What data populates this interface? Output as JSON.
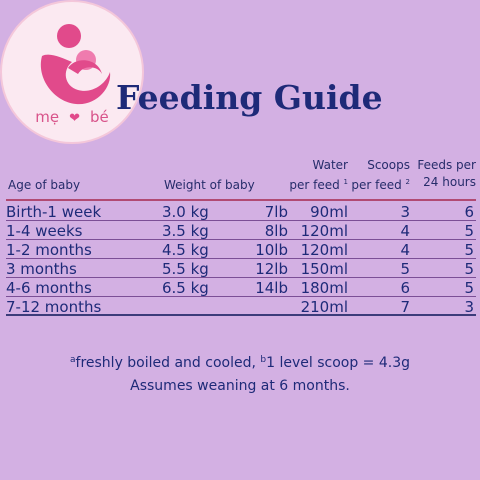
{
  "logo": {
    "icon": "mother-and-baby-icon",
    "brand_left": "mẹ",
    "brand_heart": "❤",
    "brand_right": "bé",
    "colors": {
      "accent": "#e14a8b",
      "ring": "#f4c7da"
    }
  },
  "title": "Feeding Guide",
  "headers": {
    "age": "Age of baby",
    "weight": "Weight of baby",
    "water_line1": "Water",
    "water_line2": "per feed",
    "water_mark": "1",
    "scoops_line1": "Scoops",
    "scoops_line2": "per feed",
    "scoops_mark": "2",
    "feeds_line1": "Feeds per",
    "feeds_line2": "24 hours"
  },
  "rows": [
    {
      "age": "Birth-1 week",
      "kg": "3.0 kg",
      "lb": "7lb",
      "water": "90ml",
      "scoops": "3",
      "feeds": "6"
    },
    {
      "age": "1-4 weeks",
      "kg": "3.5 kg",
      "lb": "8lb",
      "water": "120ml",
      "scoops": "4",
      "feeds": "5"
    },
    {
      "age": "1-2 months",
      "kg": "4.5 kg",
      "lb": "10lb",
      "water": "120ml",
      "scoops": "4",
      "feeds": "5"
    },
    {
      "age": "3 months",
      "kg": "5.5 kg",
      "lb": "12lb",
      "water": "150ml",
      "scoops": "5",
      "feeds": "5"
    },
    {
      "age": "4-6 months",
      "kg": "6.5 kg",
      "lb": "14lb",
      "water": "180ml",
      "scoops": "6",
      "feeds": "5"
    },
    {
      "age": "7-12 months",
      "kg": "",
      "lb": "",
      "water": "210ml",
      "scoops": "7",
      "feeds": "3"
    }
  ],
  "footnotes": {
    "mark_a": "a",
    "note_a": "freshly boiled and cooled,",
    "mark_b": "b",
    "note_b": "1 level scoop = 4.3g",
    "note_c": "Assumes weaning at 6 months."
  },
  "colors": {
    "background": "#d3b0e3",
    "text": "#1e2a78",
    "rule": "#b14a73"
  }
}
